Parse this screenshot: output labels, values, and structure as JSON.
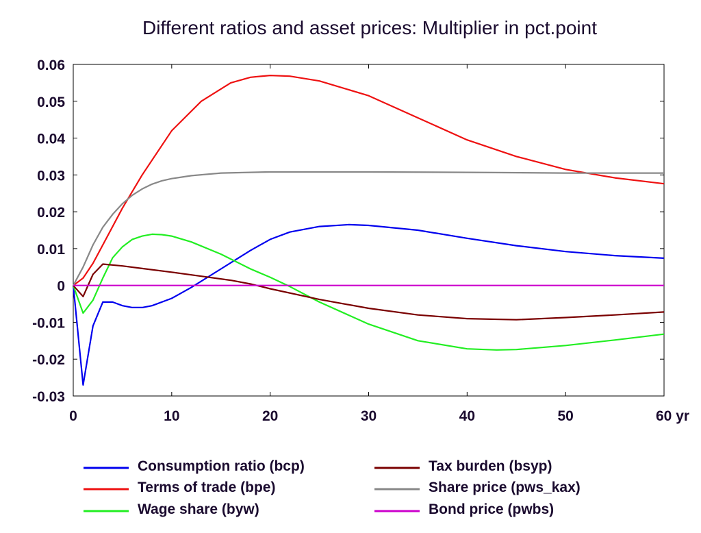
{
  "chart_data": {
    "type": "line",
    "title": "Different ratios and asset prices: Multiplier in pct.point",
    "xlabel": "",
    "ylabel": "",
    "xlim": [
      0,
      60
    ],
    "ylim": [
      -0.03,
      0.06
    ],
    "x_ticks": [
      0,
      10,
      20,
      30,
      40,
      50,
      60
    ],
    "x_tick_labels": [
      "0",
      "10",
      "20",
      "30",
      "40",
      "50",
      "60 yr"
    ],
    "y_ticks": [
      -0.03,
      -0.02,
      -0.01,
      0,
      0.01,
      0.02,
      0.03,
      0.04,
      0.05,
      0.06
    ],
    "y_tick_labels": [
      "-0.03",
      "-0.02",
      "-0.01",
      "0",
      "0.01",
      "0.02",
      "0.03",
      "0.04",
      "0.05",
      "0.06"
    ],
    "grid": false,
    "legend_position": "bottom",
    "series": [
      {
        "name": "Consumption ratio (bcp)",
        "color": "#0000ee",
        "x": [
          0,
          1,
          2,
          3,
          4,
          5,
          6,
          7,
          8,
          10,
          12,
          15,
          18,
          20,
          22,
          25,
          28,
          30,
          35,
          40,
          45,
          50,
          55,
          60
        ],
        "y": [
          0,
          -0.027,
          -0.011,
          -0.0045,
          -0.0045,
          -0.0055,
          -0.006,
          -0.006,
          -0.0055,
          -0.0035,
          -0.0005,
          0.0045,
          0.0095,
          0.0125,
          0.0145,
          0.016,
          0.0165,
          0.0163,
          0.015,
          0.0128,
          0.0108,
          0.0092,
          0.0081,
          0.0074
        ]
      },
      {
        "name": "Terms of trade (bpe)",
        "color": "#ee1111",
        "x": [
          0,
          1,
          2,
          3,
          5,
          7,
          10,
          13,
          16,
          18,
          20,
          22,
          25,
          30,
          35,
          40,
          45,
          50,
          55,
          60
        ],
        "y": [
          0,
          0.002,
          0.006,
          0.011,
          0.021,
          0.03,
          0.042,
          0.05,
          0.055,
          0.0565,
          0.057,
          0.0568,
          0.0555,
          0.0515,
          0.0455,
          0.0395,
          0.035,
          0.0315,
          0.0292,
          0.0276
        ]
      },
      {
        "name": "Wage share (byw)",
        "color": "#22ee22",
        "x": [
          0,
          1,
          2,
          3,
          4,
          5,
          6,
          7,
          8,
          9,
          10,
          12,
          15,
          18,
          20,
          22,
          25,
          30,
          35,
          40,
          43,
          45,
          50,
          55,
          60
        ],
        "y": [
          0,
          -0.0075,
          -0.004,
          0.002,
          0.0075,
          0.0105,
          0.0125,
          0.0134,
          0.0139,
          0.0138,
          0.0134,
          0.0118,
          0.0085,
          0.0045,
          0.0022,
          -0.0003,
          -0.0045,
          -0.0105,
          -0.015,
          -0.0172,
          -0.0175,
          -0.0174,
          -0.0163,
          -0.0148,
          -0.0132
        ]
      },
      {
        "name": "Tax burden (bsyp)",
        "color": "#7a0000",
        "x": [
          0,
          1,
          2,
          3,
          5,
          7,
          10,
          13,
          16,
          18,
          20,
          25,
          30,
          35,
          40,
          45,
          50,
          55,
          60
        ],
        "y": [
          0,
          -0.003,
          0.003,
          0.0058,
          0.0053,
          0.0046,
          0.0036,
          0.0025,
          0.0014,
          0.0004,
          -0.0009,
          -0.0038,
          -0.0062,
          -0.008,
          -0.009,
          -0.0093,
          -0.0087,
          -0.008,
          -0.0072
        ]
      },
      {
        "name": "Share price (pws_kax)",
        "color": "#888888",
        "x": [
          0,
          1,
          2,
          3,
          4,
          5,
          6,
          7,
          8,
          9,
          10,
          12,
          15,
          18,
          20,
          25,
          30,
          40,
          50,
          60
        ],
        "y": [
          0,
          0.005,
          0.011,
          0.0158,
          0.0193,
          0.0222,
          0.0245,
          0.0262,
          0.0275,
          0.0284,
          0.029,
          0.0298,
          0.0305,
          0.0307,
          0.0308,
          0.0308,
          0.0308,
          0.0307,
          0.0305,
          0.0305
        ]
      },
      {
        "name": "Bond price (pwbs)",
        "color": "#cc00cc",
        "x": [
          0,
          60
        ],
        "y": [
          0,
          0
        ]
      }
    ]
  }
}
